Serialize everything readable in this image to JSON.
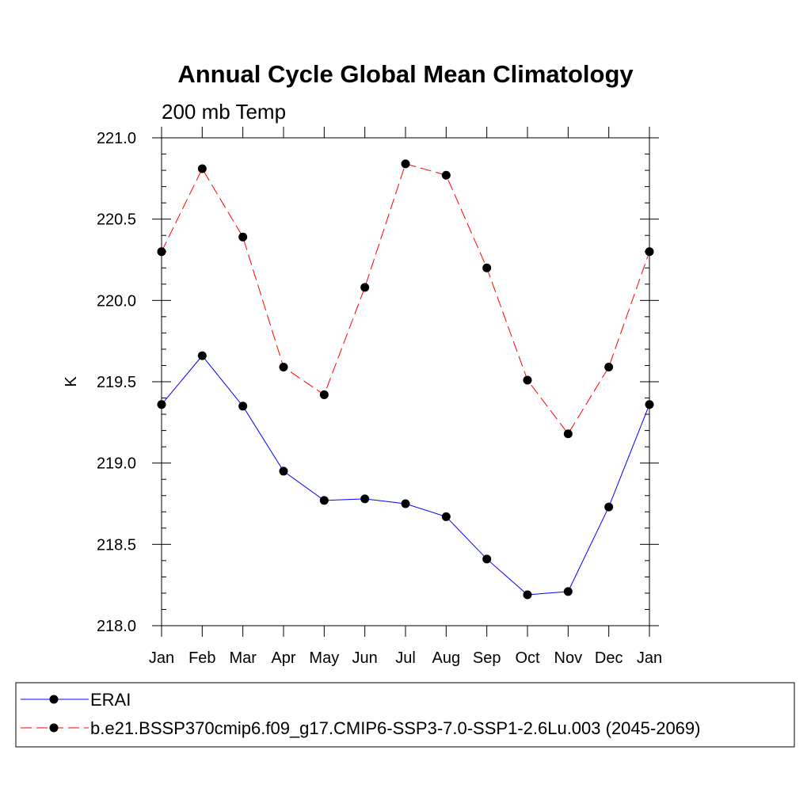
{
  "chart_data": {
    "type": "line",
    "title": "Annual Cycle Global Mean Climatology",
    "subtitle": "200 mb Temp",
    "xlabel": "",
    "ylabel": "K",
    "categories": [
      "Jan",
      "Feb",
      "Mar",
      "Apr",
      "May",
      "Jun",
      "Jul",
      "Aug",
      "Sep",
      "Oct",
      "Nov",
      "Dec",
      "Jan"
    ],
    "ylim": [
      218.0,
      221.0
    ],
    "yticks": [
      "218.0",
      "218.5",
      "219.0",
      "219.5",
      "220.0",
      "220.5",
      "221.0"
    ],
    "grid": false,
    "legend_placement": "bottom",
    "series": [
      {
        "name": "ERAI",
        "color": "#0000ff",
        "style": "solid",
        "values": [
          219.36,
          219.66,
          219.35,
          218.95,
          218.77,
          218.78,
          218.75,
          218.67,
          218.41,
          218.19,
          218.21,
          218.73,
          219.36
        ]
      },
      {
        "name": "b.e21.BSSP370cmip6.f09_g17.CMIP6-SSP3-7.0-SSP1-2.6Lu.003 (2045-2069)",
        "color": "#ff0000",
        "style": "dashed",
        "values": [
          220.3,
          220.81,
          220.39,
          219.59,
          219.42,
          220.08,
          220.84,
          220.77,
          220.2,
          219.51,
          219.18,
          219.59,
          220.3
        ]
      }
    ]
  }
}
